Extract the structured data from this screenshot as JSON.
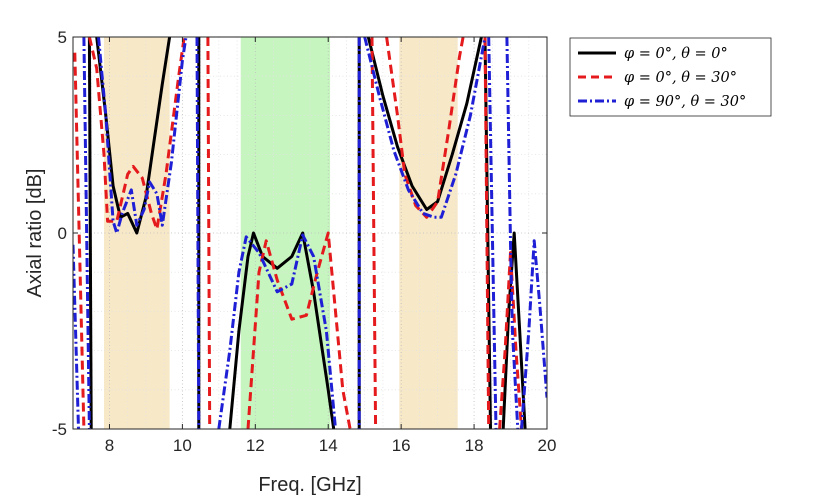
{
  "chart_data": {
    "type": "line",
    "xlabel": "Freq. [GHz]",
    "ylabel": "Axial ratio [dB]",
    "xlim": [
      7,
      20
    ],
    "ylim": [
      -5,
      5
    ],
    "x_ticks": [
      8,
      10,
      12,
      14,
      16,
      18,
      20
    ],
    "y_ticks": [
      -5,
      0,
      5
    ],
    "x_tick_labels": [
      "8",
      "10",
      "12",
      "14",
      "16",
      "18",
      "20"
    ],
    "y_tick_labels": [
      "-5",
      "0",
      "5"
    ],
    "grid": "dotted",
    "legend_position": "outside-top-right",
    "shaded_bands": [
      {
        "x_start": 7.85,
        "x_end": 9.65,
        "color": "#f7e8c8"
      },
      {
        "x_start": 11.6,
        "x_end": 14.05,
        "color": "#c6f5c0"
      },
      {
        "x_start": 15.95,
        "x_end": 17.55,
        "color": "#f7e8c8"
      }
    ],
    "series": [
      {
        "name": "φ = 0°, θ = 0°",
        "color": "#000000",
        "dash": "solid",
        "segments": [
          [
            [
              7.45,
              5
            ],
            [
              7.5,
              -5
            ]
          ],
          [
            [
              7.65,
              5
            ],
            [
              7.9,
              3
            ],
            [
              8.1,
              1.2
            ],
            [
              8.3,
              0.4
            ],
            [
              8.5,
              0.5
            ],
            [
              8.75,
              0
            ],
            [
              9.0,
              0.9
            ],
            [
              9.2,
              2.2
            ],
            [
              9.45,
              3.8
            ],
            [
              9.65,
              5
            ]
          ],
          [
            [
              10.45,
              5
            ],
            [
              10.45,
              -5
            ]
          ],
          [
            [
              11.3,
              -5
            ],
            [
              11.55,
              -2.5
            ],
            [
              11.8,
              -0.6
            ],
            [
              11.95,
              0
            ],
            [
              12.2,
              -0.6
            ],
            [
              12.6,
              -0.9
            ],
            [
              13.0,
              -0.6
            ],
            [
              13.3,
              0
            ],
            [
              13.6,
              -1.5
            ],
            [
              14.0,
              -4
            ],
            [
              14.15,
              -5
            ]
          ],
          [
            [
              14.85,
              5
            ],
            [
              14.85,
              -5
            ]
          ],
          [
            [
              15.1,
              5
            ],
            [
              15.5,
              3.5
            ],
            [
              15.9,
              2.2
            ],
            [
              16.3,
              1.2
            ],
            [
              16.7,
              0.6
            ],
            [
              17.0,
              0.8
            ],
            [
              17.4,
              2.0
            ],
            [
              17.8,
              3.3
            ],
            [
              18.2,
              5
            ]
          ],
          [
            [
              18.3,
              5
            ],
            [
              18.45,
              -5
            ]
          ],
          [
            [
              18.8,
              -5
            ],
            [
              18.95,
              -2
            ],
            [
              19.1,
              0
            ],
            [
              19.25,
              -2.5
            ],
            [
              19.4,
              -5
            ]
          ]
        ]
      },
      {
        "name": "φ = 0°, θ = 30°",
        "color": "#e41a1c",
        "dash": "dashed",
        "segments": [
          [
            [
              7.05,
              4.6
            ],
            [
              7.3,
              -5
            ]
          ],
          [
            [
              7.45,
              5
            ],
            [
              7.65,
              4.2
            ],
            [
              7.85,
              2.0
            ],
            [
              7.95,
              0.3
            ],
            [
              8.2,
              0.3
            ],
            [
              8.5,
              1.5
            ],
            [
              8.65,
              1.7
            ],
            [
              8.9,
              1.4
            ],
            [
              9.15,
              0.5
            ],
            [
              9.3,
              0.1
            ],
            [
              9.55,
              1.5
            ],
            [
              9.9,
              4
            ],
            [
              10.05,
              5
            ]
          ],
          [
            [
              10.7,
              5
            ],
            [
              10.75,
              -5
            ]
          ],
          [
            [
              11.8,
              -5
            ],
            [
              12.1,
              -1
            ],
            [
              12.3,
              -0.2
            ],
            [
              12.6,
              -1.2
            ],
            [
              13.0,
              -2.2
            ],
            [
              13.4,
              -2.1
            ],
            [
              13.7,
              -1
            ],
            [
              14.0,
              0
            ],
            [
              14.4,
              -4
            ],
            [
              14.6,
              -5
            ]
          ],
          [
            [
              15.2,
              5
            ],
            [
              15.3,
              -5
            ]
          ],
          [
            [
              15.6,
              5
            ],
            [
              15.9,
              3.0
            ],
            [
              16.1,
              1.5
            ],
            [
              16.4,
              0.7
            ],
            [
              16.7,
              0.4
            ],
            [
              17.0,
              0.8
            ],
            [
              17.3,
              2.6
            ],
            [
              17.6,
              4.5
            ],
            [
              17.7,
              5
            ]
          ],
          [
            [
              18.3,
              5
            ],
            [
              18.4,
              -5
            ]
          ],
          [
            [
              18.7,
              -5
            ],
            [
              18.85,
              -3
            ],
            [
              19.0,
              -0.5
            ],
            [
              19.15,
              -3
            ],
            [
              19.3,
              -5
            ]
          ]
        ]
      },
      {
        "name": "φ = 90°, θ = 30°",
        "color": "#1f1fd6",
        "dash": "dashdot",
        "segments": [
          [
            [
              7.0,
              -0.3
            ],
            [
              7.15,
              -5
            ]
          ],
          [
            [
              7.3,
              5
            ],
            [
              7.45,
              -5
            ]
          ],
          [
            [
              7.7,
              5
            ],
            [
              7.9,
              3
            ],
            [
              8.1,
              0.3
            ],
            [
              8.2,
              0
            ],
            [
              8.35,
              0.5
            ],
            [
              8.6,
              1.1
            ],
            [
              8.75,
              0.2
            ],
            [
              8.95,
              0.6
            ],
            [
              9.1,
              1.3
            ],
            [
              9.3,
              1.0
            ],
            [
              9.45,
              0.2
            ],
            [
              9.7,
              1.8
            ],
            [
              10.0,
              4.4
            ],
            [
              10.1,
              5
            ]
          ],
          [
            [
              10.4,
              5
            ],
            [
              10.45,
              -5
            ]
          ],
          [
            [
              11.0,
              -5
            ],
            [
              11.3,
              -3
            ],
            [
              11.55,
              -1
            ],
            [
              11.75,
              -0.1
            ],
            [
              12.1,
              -0.5
            ],
            [
              12.6,
              -1.5
            ],
            [
              13.0,
              -1.3
            ],
            [
              13.3,
              -0.05
            ],
            [
              13.6,
              -0.6
            ],
            [
              13.95,
              -2.5
            ],
            [
              14.2,
              -5
            ]
          ],
          [
            [
              14.85,
              5
            ],
            [
              14.85,
              -5
            ]
          ],
          [
            [
              15.0,
              5
            ],
            [
              15.4,
              3.5
            ],
            [
              15.8,
              2.1
            ],
            [
              16.2,
              1.1
            ],
            [
              16.6,
              0.5
            ],
            [
              16.9,
              0.4
            ],
            [
              17.1,
              0.4
            ],
            [
              17.5,
              1.5
            ],
            [
              17.9,
              3.0
            ],
            [
              18.2,
              4.5
            ],
            [
              18.3,
              5
            ]
          ],
          [
            [
              18.4,
              5
            ],
            [
              18.6,
              -5
            ]
          ],
          [
            [
              18.9,
              5
            ],
            [
              19.0,
              -0.25
            ],
            [
              19.05,
              -2.5
            ],
            [
              19.2,
              -5
            ]
          ],
          [
            [
              19.3,
              -5
            ],
            [
              19.5,
              -2.5
            ],
            [
              19.65,
              -0.2
            ],
            [
              19.8,
              -1.8
            ],
            [
              20.0,
              -4.2
            ]
          ]
        ]
      }
    ]
  }
}
